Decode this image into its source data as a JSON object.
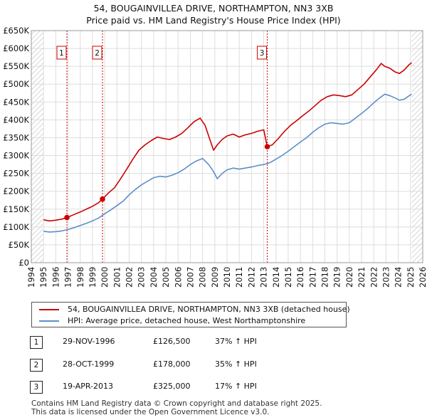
{
  "title": {
    "line1": "54, BOUGAINVILLEA DRIVE, NORTHAMPTON, NN3 3XB",
    "line2": "Price paid vs. HM Land Registry's House Price Index (HPI)"
  },
  "chart_data": {
    "type": "line",
    "title": "54, BOUGAINVILLEA DRIVE, NORTHAMPTON, NN3 3XB — Price paid vs. HM Land Registry's House Price Index (HPI)",
    "xlim": [
      1994,
      2026
    ],
    "ylim": [
      0,
      650000
    ],
    "x_ticks": [
      1994,
      1995,
      1996,
      1997,
      1998,
      1999,
      2000,
      2001,
      2002,
      2003,
      2004,
      2005,
      2006,
      2007,
      2008,
      2009,
      2010,
      2011,
      2012,
      2013,
      2014,
      2015,
      2016,
      2017,
      2018,
      2019,
      2020,
      2021,
      2022,
      2023,
      2024,
      2025,
      2026
    ],
    "y_ticks": [
      0,
      50000,
      100000,
      150000,
      200000,
      250000,
      300000,
      350000,
      400000,
      450000,
      500000,
      550000,
      600000,
      650000
    ],
    "y_tick_labels": [
      "£0",
      "£50K",
      "£100K",
      "£150K",
      "£200K",
      "£250K",
      "£300K",
      "£350K",
      "£400K",
      "£450K",
      "£500K",
      "£550K",
      "£600K",
      "£650K"
    ],
    "grid": true,
    "hatched_ranges": [
      [
        1994,
        1995.0
      ],
      [
        2025.1,
        2026
      ]
    ],
    "series": [
      {
        "name": "54, BOUGAINVILLEA DRIVE, NORTHAMPTON, NN3 3XB (detached house)",
        "color": "#cc0000",
        "x": [
          1995.0,
          1995.5,
          1996.0,
          1996.5,
          1996.91,
          1997.5,
          1998.0,
          1998.5,
          1999.0,
          1999.5,
          1999.82,
          2000.3,
          2000.8,
          2001.3,
          2001.8,
          2002.3,
          2002.8,
          2003.3,
          2003.8,
          2004.3,
          2004.8,
          2005.3,
          2005.8,
          2006.3,
          2006.8,
          2007.3,
          2007.8,
          2008.2,
          2008.6,
          2008.9,
          2009.2,
          2009.6,
          2010.0,
          2010.5,
          2011.0,
          2011.5,
          2012.0,
          2012.5,
          2013.0,
          2013.29,
          2013.7,
          2014.2,
          2014.7,
          2015.2,
          2015.7,
          2016.2,
          2016.7,
          2017.2,
          2017.7,
          2018.2,
          2018.7,
          2019.2,
          2019.7,
          2020.2,
          2020.7,
          2021.2,
          2021.7,
          2022.2,
          2022.6,
          2022.9,
          2023.3,
          2023.7,
          2024.1,
          2024.5,
          2024.9,
          2025.1
        ],
        "y": [
          120000,
          117000,
          119000,
          122000,
          126500,
          135000,
          142000,
          150000,
          158000,
          168000,
          178000,
          195000,
          210000,
          235000,
          262000,
          290000,
          315000,
          330000,
          342000,
          352000,
          348000,
          345000,
          352000,
          362000,
          378000,
          395000,
          405000,
          385000,
          345000,
          315000,
          330000,
          345000,
          355000,
          360000,
          352000,
          358000,
          362000,
          368000,
          372000,
          325000,
          330000,
          348000,
          368000,
          385000,
          398000,
          412000,
          425000,
          440000,
          455000,
          465000,
          470000,
          468000,
          465000,
          470000,
          485000,
          500000,
          520000,
          540000,
          558000,
          550000,
          545000,
          535000,
          530000,
          540000,
          555000,
          560000
        ]
      },
      {
        "name": "HPI: Average price, detached house, West Northamptonshire",
        "color": "#5b8fc9",
        "x": [
          1995.0,
          1995.5,
          1996.0,
          1996.5,
          1997.0,
          1997.5,
          1998.0,
          1998.5,
          1999.0,
          1999.5,
          2000.0,
          2000.5,
          2001.0,
          2001.5,
          2002.0,
          2002.5,
          2003.0,
          2003.5,
          2004.0,
          2004.5,
          2005.0,
          2005.5,
          2006.0,
          2006.5,
          2007.0,
          2007.5,
          2008.0,
          2008.5,
          2008.9,
          2009.2,
          2009.6,
          2010.0,
          2010.5,
          2011.0,
          2011.5,
          2012.0,
          2012.5,
          2013.0,
          2013.5,
          2014.0,
          2014.5,
          2015.0,
          2015.5,
          2016.0,
          2016.5,
          2017.0,
          2017.5,
          2018.0,
          2018.5,
          2019.0,
          2019.5,
          2020.0,
          2020.5,
          2021.0,
          2021.5,
          2022.0,
          2022.5,
          2022.9,
          2023.3,
          2023.7,
          2024.1,
          2024.5,
          2024.9,
          2025.1
        ],
        "y": [
          88000,
          86000,
          87000,
          89000,
          93000,
          98000,
          104000,
          110000,
          117000,
          125000,
          137000,
          148000,
          160000,
          172000,
          190000,
          205000,
          218000,
          228000,
          238000,
          242000,
          240000,
          245000,
          252000,
          262000,
          275000,
          285000,
          292000,
          275000,
          255000,
          235000,
          250000,
          260000,
          265000,
          262000,
          265000,
          268000,
          272000,
          275000,
          280000,
          290000,
          300000,
          312000,
          325000,
          338000,
          350000,
          365000,
          378000,
          388000,
          392000,
          390000,
          388000,
          392000,
          405000,
          418000,
          432000,
          448000,
          462000,
          472000,
          468000,
          462000,
          455000,
          458000,
          468000,
          472000
        ]
      }
    ],
    "sales": [
      {
        "id": "1",
        "x": 1996.91,
        "y": 126500
      },
      {
        "id": "2",
        "x": 1999.82,
        "y": 178000
      },
      {
        "id": "3",
        "x": 2013.29,
        "y": 325000
      }
    ]
  },
  "legend": {
    "property_label": "54, BOUGAINVILLEA DRIVE, NORTHAMPTON, NN3 3XB (detached house)",
    "hpi_label": "HPI: Average price, detached house, West Northamptonshire",
    "property_color": "#cc0000",
    "hpi_color": "#5b8fc9"
  },
  "transactions": [
    {
      "num": "1",
      "date": "29-NOV-1996",
      "price": "£126,500",
      "hpi": "37% ↑ HPI"
    },
    {
      "num": "2",
      "date": "28-OCT-1999",
      "price": "£178,000",
      "hpi": "35% ↑ HPI"
    },
    {
      "num": "3",
      "date": "19-APR-2013",
      "price": "£325,000",
      "hpi": "17% ↑ HPI"
    }
  ],
  "footer": {
    "line1": "Contains HM Land Registry data © Crown copyright and database right 2025.",
    "line2": "This data is licensed under the Open Government Licence v3.0."
  }
}
